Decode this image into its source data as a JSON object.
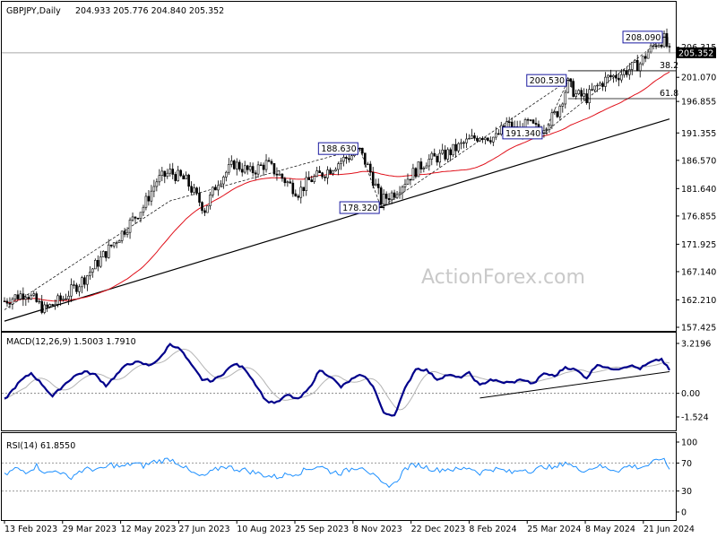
{
  "chart_data": [
    {
      "type": "candlestick",
      "symbol": "GBPJPY,Daily",
      "ohlc": "204.933 205.776 204.840 205.352",
      "current_price": 205.352,
      "current_price_label": "205.352",
      "ylim": [
        157.425,
        209.87
      ],
      "y_ticks": [
        {
          "v": 206.315,
          "label": "206.315"
        },
        {
          "v": 201.07,
          "label": "201.070"
        },
        {
          "v": 196.855,
          "label": "196.855"
        },
        {
          "v": 191.355,
          "label": "191.355"
        },
        {
          "v": 186.57,
          "label": "186.570"
        },
        {
          "v": 181.64,
          "label": "181.640"
        },
        {
          "v": 176.855,
          "label": "176.855"
        },
        {
          "v": 171.925,
          "label": "171.925"
        },
        {
          "v": 167.14,
          "label": "167.140"
        },
        {
          "v": 162.21,
          "label": "162.210"
        },
        {
          "v": 157.425,
          "label": "157.425"
        }
      ],
      "x_ticks": [
        "13 Feb 2023",
        "29 Mar 2023",
        "12 May 2023",
        "27 Jun 2023",
        "10 Aug 2023",
        "25 Sep 2023",
        "8 Nov 2023",
        "22 Dec 2023",
        "8 Feb 2024",
        "25 Mar 2024",
        "8 May 2024",
        "21 Jun 2024"
      ],
      "annotations": [
        {
          "text": "208.090",
          "value": 208.09,
          "idx": 247
        },
        {
          "text": "200.530",
          "value": 200.53,
          "idx": 211
        },
        {
          "text": "188.630",
          "value": 188.63,
          "idx": 133
        },
        {
          "text": "178.320",
          "value": 178.32,
          "idx": 141
        },
        {
          "text": "191.340",
          "value": 191.34,
          "idx": 202
        }
      ],
      "fib_levels": [
        {
          "label": "38.2",
          "value": 202.21
        },
        {
          "label": "61.8",
          "value": 197.34
        }
      ],
      "moving_average_color": "#e0101a",
      "trendline": {
        "from": {
          "idx": 0,
          "value": 158.5
        },
        "to": {
          "idx": 249,
          "value": 193.8
        }
      },
      "path": [
        [
          0,
          162.0
        ],
        [
          8,
          163.5
        ],
        [
          15,
          160.5
        ],
        [
          22,
          162.5
        ],
        [
          30,
          166.0
        ],
        [
          38,
          170.5
        ],
        [
          45,
          174.5
        ],
        [
          52,
          178.5
        ],
        [
          57,
          183.0
        ],
        [
          62,
          184.5
        ],
        [
          68,
          183.0
        ],
        [
          75,
          178.0
        ],
        [
          80,
          183.0
        ],
        [
          86,
          186.0
        ],
        [
          92,
          184.5
        ],
        [
          98,
          186.0
        ],
        [
          104,
          183.5
        ],
        [
          110,
          181.0
        ],
        [
          114,
          183.0
        ],
        [
          120,
          184.5
        ],
        [
          126,
          186.5
        ],
        [
          133,
          188.2
        ],
        [
          137,
          184.5
        ],
        [
          141,
          179.5
        ],
        [
          146,
          181.0
        ],
        [
          151,
          183.5
        ],
        [
          158,
          186.5
        ],
        [
          165,
          187.5
        ],
        [
          172,
          189.5
        ],
        [
          178,
          191.0
        ],
        [
          184,
          190.5
        ],
        [
          188,
          193.0
        ],
        [
          192,
          191.5
        ],
        [
          196,
          193.0
        ],
        [
          200,
          191.8
        ],
        [
          203,
          193.0
        ],
        [
          207,
          195.0
        ],
        [
          211,
          200.0
        ],
        [
          214,
          198.0
        ],
        [
          218,
          197.5
        ],
        [
          222,
          199.5
        ],
        [
          226,
          201.0
        ],
        [
          230,
          201.5
        ],
        [
          234,
          202.5
        ],
        [
          238,
          203.5
        ],
        [
          241,
          205.5
        ],
        [
          244,
          207.0
        ],
        [
          247,
          207.7
        ],
        [
          249,
          205.35
        ]
      ]
    },
    {
      "type": "line",
      "title": "MACD(12,26,9) 1.5003 1.7910",
      "ylim": [
        -1.524,
        3.2196
      ],
      "y_ticks": [
        {
          "v": 3.2196,
          "label": "3.2196"
        },
        {
          "v": 0.0,
          "label": "0.00"
        },
        {
          "v": -1.524,
          "label": "-1.524"
        }
      ],
      "main_color": "#00008b",
      "signal_color": "#b4b4b4",
      "trendline": {
        "from": {
          "idx": 178,
          "value": -0.3
        },
        "to": {
          "idx": 249,
          "value": 1.4
        }
      },
      "path": [
        [
          0,
          -0.4
        ],
        [
          6,
          0.8
        ],
        [
          10,
          1.3
        ],
        [
          14,
          0.6
        ],
        [
          18,
          -0.2
        ],
        [
          22,
          0.5
        ],
        [
          26,
          1.1
        ],
        [
          30,
          1.4
        ],
        [
          34,
          1.2
        ],
        [
          38,
          0.5
        ],
        [
          42,
          1.2
        ],
        [
          46,
          1.9
        ],
        [
          50,
          2.0
        ],
        [
          54,
          1.8
        ],
        [
          58,
          2.2
        ],
        [
          62,
          3.2
        ],
        [
          66,
          2.8
        ],
        [
          70,
          1.8
        ],
        [
          74,
          0.9
        ],
        [
          78,
          0.8
        ],
        [
          82,
          1.3
        ],
        [
          86,
          1.9
        ],
        [
          90,
          1.6
        ],
        [
          94,
          0.6
        ],
        [
          98,
          -0.5
        ],
        [
          102,
          -0.6
        ],
        [
          106,
          -0.1
        ],
        [
          110,
          -0.4
        ],
        [
          114,
          0.3
        ],
        [
          118,
          1.5
        ],
        [
          122,
          1.1
        ],
        [
          126,
          0.4
        ],
        [
          130,
          0.9
        ],
        [
          134,
          1.2
        ],
        [
          138,
          0.5
        ],
        [
          142,
          -1.3
        ],
        [
          146,
          -1.4
        ],
        [
          150,
          0.3
        ],
        [
          154,
          1.6
        ],
        [
          158,
          1.5
        ],
        [
          162,
          0.9
        ],
        [
          166,
          1.2
        ],
        [
          170,
          1.0
        ],
        [
          174,
          1.3
        ],
        [
          178,
          0.5
        ],
        [
          182,
          0.9
        ],
        [
          186,
          0.7
        ],
        [
          190,
          0.7
        ],
        [
          194,
          0.9
        ],
        [
          198,
          0.6
        ],
        [
          202,
          1.3
        ],
        [
          206,
          1.1
        ],
        [
          210,
          1.7
        ],
        [
          214,
          1.5
        ],
        [
          218,
          1.0
        ],
        [
          222,
          1.9
        ],
        [
          226,
          1.6
        ],
        [
          230,
          1.6
        ],
        [
          234,
          1.8
        ],
        [
          238,
          1.6
        ],
        [
          242,
          2.0
        ],
        [
          246,
          2.2
        ],
        [
          249,
          1.5
        ]
      ]
    },
    {
      "type": "line",
      "title": "RSI(14) 61.8550",
      "ylim": [
        0,
        100
      ],
      "y_ticks": [
        {
          "v": 100,
          "label": "100"
        },
        {
          "v": 70,
          "label": "70"
        },
        {
          "v": 30,
          "label": "30"
        },
        {
          "v": 0,
          "label": "0"
        }
      ],
      "line_color": "#1e90ff",
      "path": [
        [
          0,
          52
        ],
        [
          4,
          62
        ],
        [
          8,
          58
        ],
        [
          12,
          66
        ],
        [
          16,
          55
        ],
        [
          20,
          60
        ],
        [
          24,
          48
        ],
        [
          28,
          58
        ],
        [
          32,
          62
        ],
        [
          36,
          60
        ],
        [
          40,
          68
        ],
        [
          44,
          64
        ],
        [
          48,
          70
        ],
        [
          52,
          66
        ],
        [
          56,
          72
        ],
        [
          60,
          74
        ],
        [
          62,
          76
        ],
        [
          66,
          68
        ],
        [
          70,
          56
        ],
        [
          74,
          50
        ],
        [
          78,
          58
        ],
        [
          82,
          66
        ],
        [
          86,
          62
        ],
        [
          90,
          60
        ],
        [
          94,
          56
        ],
        [
          98,
          52
        ],
        [
          102,
          50
        ],
        [
          106,
          54
        ],
        [
          110,
          56
        ],
        [
          114,
          62
        ],
        [
          118,
          66
        ],
        [
          122,
          58
        ],
        [
          126,
          56
        ],
        [
          130,
          62
        ],
        [
          134,
          66
        ],
        [
          138,
          52
        ],
        [
          142,
          38
        ],
        [
          146,
          40
        ],
        [
          150,
          62
        ],
        [
          154,
          68
        ],
        [
          158,
          64
        ],
        [
          162,
          60
        ],
        [
          166,
          62
        ],
        [
          170,
          60
        ],
        [
          174,
          64
        ],
        [
          178,
          56
        ],
        [
          182,
          62
        ],
        [
          186,
          60
        ],
        [
          190,
          56
        ],
        [
          194,
          62
        ],
        [
          198,
          58
        ],
        [
          202,
          66
        ],
        [
          206,
          62
        ],
        [
          210,
          72
        ],
        [
          214,
          62
        ],
        [
          218,
          60
        ],
        [
          222,
          66
        ],
        [
          226,
          62
        ],
        [
          230,
          60
        ],
        [
          234,
          66
        ],
        [
          238,
          64
        ],
        [
          242,
          68
        ],
        [
          246,
          78
        ],
        [
          249,
          61.855
        ]
      ]
    }
  ],
  "watermark": "ActionForex.com"
}
